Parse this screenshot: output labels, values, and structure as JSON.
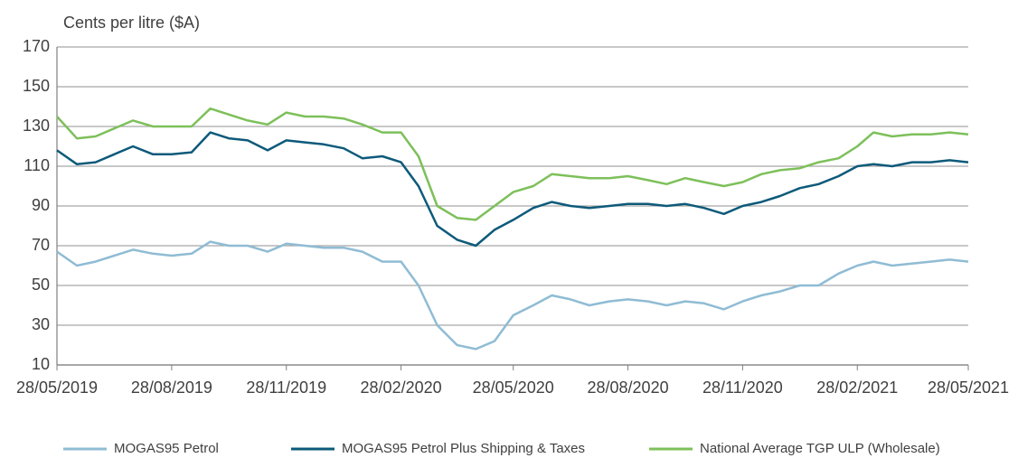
{
  "chart_data": {
    "type": "line",
    "y_label": "Cents per litre ($A)",
    "x": [
      "28/05/2019",
      "13/06/2019",
      "28/06/2019",
      "13/07/2019",
      "28/07/2019",
      "13/08/2019",
      "28/08/2019",
      "13/09/2019",
      "28/09/2019",
      "13/10/2019",
      "28/10/2019",
      "13/11/2019",
      "28/11/2019",
      "13/12/2019",
      "28/12/2019",
      "13/01/2020",
      "28/01/2020",
      "13/02/2020",
      "28/02/2020",
      "13/03/2020",
      "28/03/2020",
      "13/04/2020",
      "28/04/2020",
      "13/05/2020",
      "28/05/2020",
      "13/06/2020",
      "28/06/2020",
      "13/07/2020",
      "28/07/2020",
      "13/08/2020",
      "28/08/2020",
      "13/09/2020",
      "28/09/2020",
      "13/10/2020",
      "28/10/2020",
      "13/11/2020",
      "28/11/2020",
      "13/12/2020",
      "28/12/2020",
      "13/01/2021",
      "28/01/2021",
      "13/02/2021",
      "28/02/2021",
      "13/03/2021",
      "28/03/2021",
      "13/04/2021",
      "28/04/2021",
      "13/05/2021",
      "28/05/2021"
    ],
    "series": [
      {
        "name": "MOGAS95 Petrol",
        "color": "#8fbcd4",
        "values": [
          67,
          60,
          62,
          65,
          68,
          66,
          65,
          66,
          72,
          70,
          70,
          67,
          71,
          70,
          69,
          69,
          67,
          62,
          62,
          50,
          30,
          20,
          18,
          22,
          35,
          40,
          45,
          43,
          40,
          42,
          43,
          42,
          40,
          42,
          41,
          38,
          42,
          45,
          47,
          50,
          50,
          56,
          60,
          62,
          60,
          61,
          62,
          63,
          62
        ]
      },
      {
        "name": "MOGAS95 Petrol Plus Shipping & Taxes",
        "color": "#0d5a7a",
        "values": [
          118,
          111,
          112,
          116,
          120,
          116,
          116,
          117,
          127,
          124,
          123,
          118,
          123,
          122,
          121,
          119,
          114,
          115,
          112,
          100,
          80,
          73,
          70,
          78,
          83,
          89,
          92,
          90,
          89,
          90,
          91,
          91,
          90,
          91,
          89,
          86,
          90,
          92,
          95,
          99,
          101,
          105,
          110,
          111,
          110,
          112,
          112,
          113,
          112
        ]
      },
      {
        "name": "National Average TGP ULP (Wholesale)",
        "color": "#7dc05a",
        "values": [
          135,
          124,
          125,
          129,
          133,
          130,
          130,
          130,
          139,
          136,
          133,
          131,
          137,
          135,
          135,
          134,
          131,
          127,
          127,
          115,
          90,
          84,
          83,
          90,
          97,
          100,
          106,
          105,
          104,
          104,
          105,
          103,
          101,
          104,
          102,
          100,
          102,
          106,
          108,
          109,
          112,
          114,
          120,
          127,
          125,
          126,
          126,
          127,
          126
        ]
      }
    ],
    "xlim": [
      "28/05/2019",
      "28/05/2021"
    ],
    "xticks": [
      "28/05/2019",
      "28/08/2019",
      "28/11/2019",
      "28/02/2020",
      "28/05/2020",
      "28/08/2020",
      "28/11/2020",
      "28/02/2021",
      "28/05/2021"
    ],
    "ylim": [
      10,
      170
    ],
    "yticks": [
      10,
      30,
      50,
      70,
      90,
      110,
      130,
      150,
      170
    ],
    "grid": true,
    "legend": "bottom"
  }
}
